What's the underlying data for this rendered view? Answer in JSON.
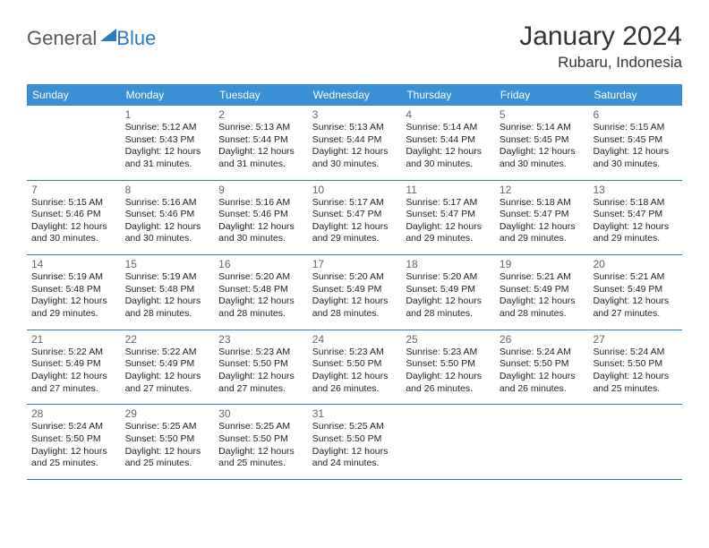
{
  "brand": {
    "part1": "General",
    "part2": "Blue"
  },
  "title": "January 2024",
  "location": "Rubaru, Indonesia",
  "colors": {
    "header_bg": "#3b8fd4",
    "border": "#2a7bbf",
    "logo_accent": "#2a7bbf",
    "logo_gray": "#5a5a5a",
    "text": "#222222",
    "daynum": "#666666"
  },
  "dow": [
    "Sunday",
    "Monday",
    "Tuesday",
    "Wednesday",
    "Thursday",
    "Friday",
    "Saturday"
  ],
  "weeks": [
    [
      null,
      {
        "n": "1",
        "sr": "5:12 AM",
        "ss": "5:43 PM",
        "dl": "12 hours and 31 minutes."
      },
      {
        "n": "2",
        "sr": "5:13 AM",
        "ss": "5:44 PM",
        "dl": "12 hours and 31 minutes."
      },
      {
        "n": "3",
        "sr": "5:13 AM",
        "ss": "5:44 PM",
        "dl": "12 hours and 30 minutes."
      },
      {
        "n": "4",
        "sr": "5:14 AM",
        "ss": "5:44 PM",
        "dl": "12 hours and 30 minutes."
      },
      {
        "n": "5",
        "sr": "5:14 AM",
        "ss": "5:45 PM",
        "dl": "12 hours and 30 minutes."
      },
      {
        "n": "6",
        "sr": "5:15 AM",
        "ss": "5:45 PM",
        "dl": "12 hours and 30 minutes."
      }
    ],
    [
      {
        "n": "7",
        "sr": "5:15 AM",
        "ss": "5:46 PM",
        "dl": "12 hours and 30 minutes."
      },
      {
        "n": "8",
        "sr": "5:16 AM",
        "ss": "5:46 PM",
        "dl": "12 hours and 30 minutes."
      },
      {
        "n": "9",
        "sr": "5:16 AM",
        "ss": "5:46 PM",
        "dl": "12 hours and 30 minutes."
      },
      {
        "n": "10",
        "sr": "5:17 AM",
        "ss": "5:47 PM",
        "dl": "12 hours and 29 minutes."
      },
      {
        "n": "11",
        "sr": "5:17 AM",
        "ss": "5:47 PM",
        "dl": "12 hours and 29 minutes."
      },
      {
        "n": "12",
        "sr": "5:18 AM",
        "ss": "5:47 PM",
        "dl": "12 hours and 29 minutes."
      },
      {
        "n": "13",
        "sr": "5:18 AM",
        "ss": "5:47 PM",
        "dl": "12 hours and 29 minutes."
      }
    ],
    [
      {
        "n": "14",
        "sr": "5:19 AM",
        "ss": "5:48 PM",
        "dl": "12 hours and 29 minutes."
      },
      {
        "n": "15",
        "sr": "5:19 AM",
        "ss": "5:48 PM",
        "dl": "12 hours and 28 minutes."
      },
      {
        "n": "16",
        "sr": "5:20 AM",
        "ss": "5:48 PM",
        "dl": "12 hours and 28 minutes."
      },
      {
        "n": "17",
        "sr": "5:20 AM",
        "ss": "5:49 PM",
        "dl": "12 hours and 28 minutes."
      },
      {
        "n": "18",
        "sr": "5:20 AM",
        "ss": "5:49 PM",
        "dl": "12 hours and 28 minutes."
      },
      {
        "n": "19",
        "sr": "5:21 AM",
        "ss": "5:49 PM",
        "dl": "12 hours and 28 minutes."
      },
      {
        "n": "20",
        "sr": "5:21 AM",
        "ss": "5:49 PM",
        "dl": "12 hours and 27 minutes."
      }
    ],
    [
      {
        "n": "21",
        "sr": "5:22 AM",
        "ss": "5:49 PM",
        "dl": "12 hours and 27 minutes."
      },
      {
        "n": "22",
        "sr": "5:22 AM",
        "ss": "5:49 PM",
        "dl": "12 hours and 27 minutes."
      },
      {
        "n": "23",
        "sr": "5:23 AM",
        "ss": "5:50 PM",
        "dl": "12 hours and 27 minutes."
      },
      {
        "n": "24",
        "sr": "5:23 AM",
        "ss": "5:50 PM",
        "dl": "12 hours and 26 minutes."
      },
      {
        "n": "25",
        "sr": "5:23 AM",
        "ss": "5:50 PM",
        "dl": "12 hours and 26 minutes."
      },
      {
        "n": "26",
        "sr": "5:24 AM",
        "ss": "5:50 PM",
        "dl": "12 hours and 26 minutes."
      },
      {
        "n": "27",
        "sr": "5:24 AM",
        "ss": "5:50 PM",
        "dl": "12 hours and 25 minutes."
      }
    ],
    [
      {
        "n": "28",
        "sr": "5:24 AM",
        "ss": "5:50 PM",
        "dl": "12 hours and 25 minutes."
      },
      {
        "n": "29",
        "sr": "5:25 AM",
        "ss": "5:50 PM",
        "dl": "12 hours and 25 minutes."
      },
      {
        "n": "30",
        "sr": "5:25 AM",
        "ss": "5:50 PM",
        "dl": "12 hours and 25 minutes."
      },
      {
        "n": "31",
        "sr": "5:25 AM",
        "ss": "5:50 PM",
        "dl": "12 hours and 24 minutes."
      },
      null,
      null,
      null
    ]
  ],
  "labels": {
    "sunrise": "Sunrise: ",
    "sunset": "Sunset: ",
    "daylight": "Daylight: "
  }
}
